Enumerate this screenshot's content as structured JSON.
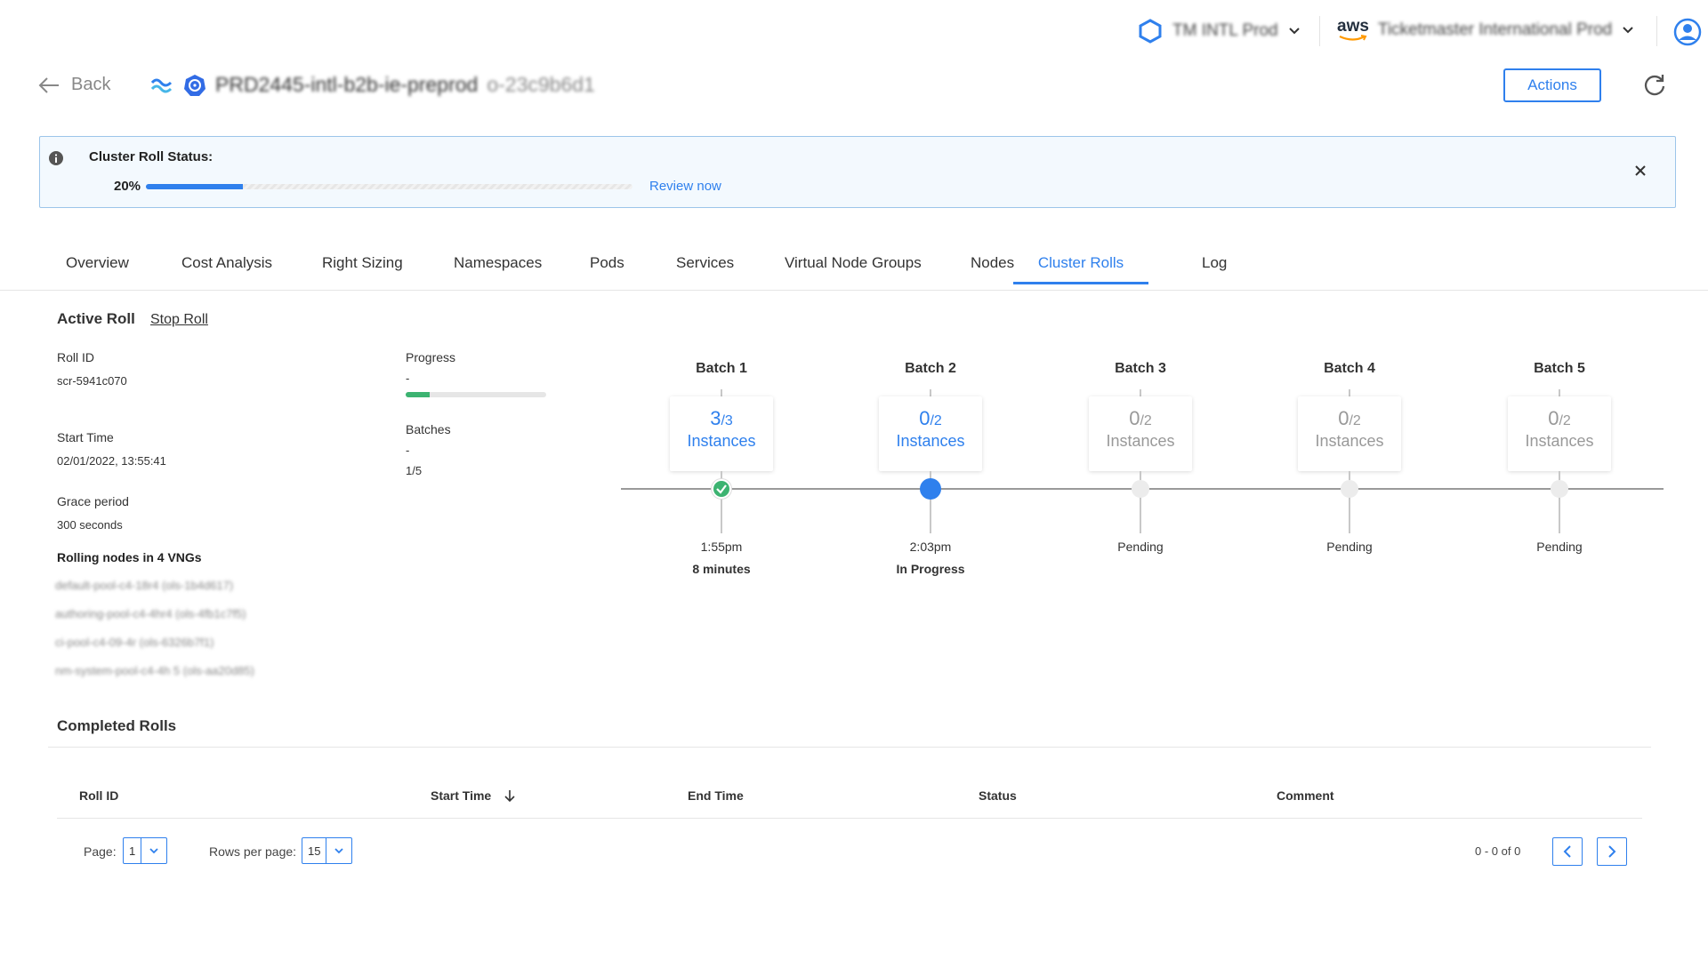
{
  "header": {
    "account_label": "TM INTL Prod",
    "aws_label": "aws",
    "aws_account": "Ticketmaster International Prod",
    "back_label": "Back",
    "cluster_name": "PRD2445-intl-b2b-ie-preprod",
    "cluster_suffix": "o-23c9b6d1",
    "actions_label": "Actions"
  },
  "banner": {
    "title": "Cluster Roll Status:",
    "percent_label": "20%",
    "progress": 0.2,
    "review_link": "Review now"
  },
  "tabs": [
    {
      "label": "Overview"
    },
    {
      "label": "Cost Analysis"
    },
    {
      "label": "Right Sizing"
    },
    {
      "label": "Namespaces"
    },
    {
      "label": "Pods"
    },
    {
      "label": "Services"
    },
    {
      "label": "Virtual Node Groups"
    },
    {
      "label": "Nodes"
    },
    {
      "label": "Cluster Rolls",
      "active": true
    },
    {
      "label": "Log"
    }
  ],
  "active_roll": {
    "title": "Active Roll",
    "stop_label": "Stop Roll",
    "roll_id_label": "Roll ID",
    "roll_id": "scr-5941c070",
    "start_time_label": "Start Time",
    "start_time": "02/01/2022, 13:55:41",
    "grace_label": "Grace period",
    "grace_value": "300 seconds",
    "rolling_label": "Rolling nodes in 4 VNGs",
    "vngs": [
      "default-pool-c4-18r4 (ols-1b4d617)",
      "authoring-pool-c4-4hr4 (ols-4fb1c7f5)",
      "ci-pool-c4-09-4r (ols-6326b7f1)",
      "nm-system-pool-c4-4h 5 (ols-aa20d85)"
    ],
    "progress_label": "Progress",
    "progress_dash": "-",
    "progress_value": 0.17,
    "batches_label": "Batches",
    "batches_dash": "-",
    "batches_value": "1/5"
  },
  "batches": [
    {
      "title": "Batch 1",
      "done": "3",
      "total": "/3",
      "instances": "Instances",
      "state": "done",
      "time": "1:55pm",
      "sub": "8 minutes"
    },
    {
      "title": "Batch 2",
      "done": "0",
      "total": "/2",
      "instances": "Instances",
      "state": "progress",
      "time": "2:03pm",
      "sub": "In Progress"
    },
    {
      "title": "Batch 3",
      "done": "0",
      "total": "/2",
      "instances": "Instances",
      "state": "pending",
      "time": "Pending",
      "sub": ""
    },
    {
      "title": "Batch 4",
      "done": "0",
      "total": "/2",
      "instances": "Instances",
      "state": "pending",
      "time": "Pending",
      "sub": ""
    },
    {
      "title": "Batch 5",
      "done": "0",
      "total": "/2",
      "instances": "Instances",
      "state": "pending",
      "time": "Pending",
      "sub": ""
    }
  ],
  "completed": {
    "title": "Completed Rolls",
    "columns": [
      "Roll ID",
      "Start Time",
      "End Time",
      "Status",
      "Comment"
    ],
    "page_label": "Page:",
    "page_value": "1",
    "rows_label": "Rows per page:",
    "rows_value": "15",
    "range_label": "0 - 0 of 0"
  },
  "colors": {
    "accent": "#2f80ed",
    "success": "#3cb371"
  }
}
